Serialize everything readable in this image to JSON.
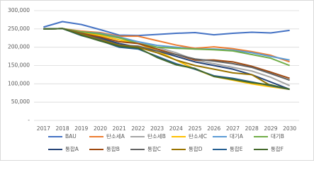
{
  "chart_data": {
    "type": "line",
    "categories": [
      "2017",
      "2018",
      "2019",
      "2020",
      "2021",
      "2022",
      "2023",
      "2024",
      "2025",
      "2026",
      "2027",
      "2028",
      "2029",
      "2030"
    ],
    "ylim": [
      0,
      300000
    ],
    "yticks": [
      {
        "value": 0,
        "label": "-"
      },
      {
        "value": 50000,
        "label": "50,000"
      },
      {
        "value": 100000,
        "label": "100,000"
      },
      {
        "value": 150000,
        "label": "150,000"
      },
      {
        "value": 200000,
        "label": "200,000"
      },
      {
        "value": 250000,
        "label": "250,000"
      },
      {
        "value": 300000,
        "label": "300,000"
      }
    ],
    "grid": true,
    "series": [
      {
        "name": "BAU",
        "color": "#4472c4",
        "values": [
          255000,
          270000,
          262000,
          248000,
          233000,
          232000,
          235000,
          238000,
          240000,
          234000,
          238000,
          241000,
          239000,
          246000
        ]
      },
      {
        "name": "탄소세A",
        "color": "#ed7d31",
        "values": [
          250000,
          251000,
          244000,
          240000,
          230000,
          230000,
          218000,
          206000,
          197000,
          201000,
          196000,
          188000,
          178000,
          160000
        ]
      },
      {
        "name": "탄소세B",
        "color": "#a5a5a5",
        "values": [
          250000,
          251000,
          240000,
          235000,
          225000,
          215000,
          200000,
          185000,
          165000,
          155000,
          145000,
          135000,
          118000,
          95000
        ]
      },
      {
        "name": "탄소세C",
        "color": "#ffc000",
        "values": [
          250000,
          251000,
          240000,
          232000,
          220000,
          210000,
          190000,
          165000,
          140000,
          120000,
          110000,
          100000,
          92000,
          85000
        ]
      },
      {
        "name": "대기A",
        "color": "#5b9bd5",
        "values": [
          250000,
          251000,
          242000,
          238000,
          228000,
          215000,
          205000,
          200000,
          195000,
          195000,
          192000,
          185000,
          175000,
          165000
        ]
      },
      {
        "name": "대기B",
        "color": "#70ad47",
        "values": [
          250000,
          251000,
          242000,
          236000,
          226000,
          210000,
          200000,
          197000,
          195000,
          193000,
          190000,
          180000,
          170000,
          150000
        ]
      },
      {
        "name": "통합A",
        "color": "#264478",
        "values": [
          250000,
          251000,
          236000,
          225000,
          210000,
          200000,
          190000,
          175000,
          160000,
          150000,
          140000,
          125000,
          105000,
          85000
        ]
      },
      {
        "name": "통합B",
        "color": "#9e480e",
        "values": [
          250000,
          251000,
          238000,
          228000,
          215000,
          210000,
          195000,
          180000,
          165000,
          165000,
          160000,
          148000,
          132000,
          115000
        ]
      },
      {
        "name": "통합C",
        "color": "#636363",
        "values": [
          250000,
          251000,
          236000,
          222000,
          206000,
          203000,
          190000,
          180000,
          168000,
          162000,
          155000,
          145000,
          128000,
          110000
        ]
      },
      {
        "name": "통합D",
        "color": "#997300",
        "values": [
          250000,
          251000,
          235000,
          220000,
          205000,
          200000,
          185000,
          165000,
          150000,
          140000,
          130000,
          125000,
          95000,
          85000
        ]
      },
      {
        "name": "통합E",
        "color": "#255e91",
        "values": [
          250000,
          251000,
          232000,
          218000,
          200000,
          195000,
          175000,
          155000,
          140000,
          122000,
          115000,
          105000,
          95000,
          85000
        ]
      },
      {
        "name": "통합F",
        "color": "#43682b",
        "values": [
          250000,
          251000,
          233000,
          217000,
          203000,
          198000,
          172000,
          152000,
          142000,
          120000,
          112000,
          103000,
          97000,
          85000
        ]
      }
    ]
  }
}
